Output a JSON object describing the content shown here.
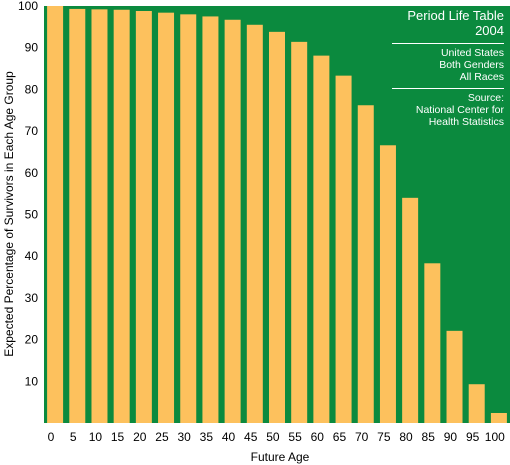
{
  "chart_data": {
    "type": "bar",
    "title": "Period Life Table",
    "subtitle": "2004",
    "notes": [
      "United States",
      "Both Genders",
      "All Races"
    ],
    "source_lines": [
      "Source:",
      "National Center for",
      "Health Statistics"
    ],
    "xlabel": "Future Age",
    "ylabel": "Expected Percentage of Survivors in Each Age Group",
    "categories": [
      "0",
      "5",
      "10",
      "15",
      "20",
      "25",
      "30",
      "35",
      "40",
      "45",
      "50",
      "55",
      "60",
      "65",
      "70",
      "75",
      "80",
      "85",
      "90",
      "95",
      "100"
    ],
    "values": [
      100,
      99.3,
      99.2,
      99.1,
      98.8,
      98.4,
      98.0,
      97.5,
      96.7,
      95.5,
      93.8,
      91.4,
      88.1,
      83.3,
      76.2,
      66.6,
      54.0,
      38.3,
      22.1,
      9.3,
      2.4
    ],
    "ylim": [
      0,
      100
    ],
    "yticks": [
      10,
      20,
      30,
      40,
      50,
      60,
      70,
      80,
      90,
      100
    ],
    "grid": false,
    "legend": "top-right",
    "colors": {
      "background": "#0b8a3e",
      "bar": "#fdc15d"
    }
  }
}
